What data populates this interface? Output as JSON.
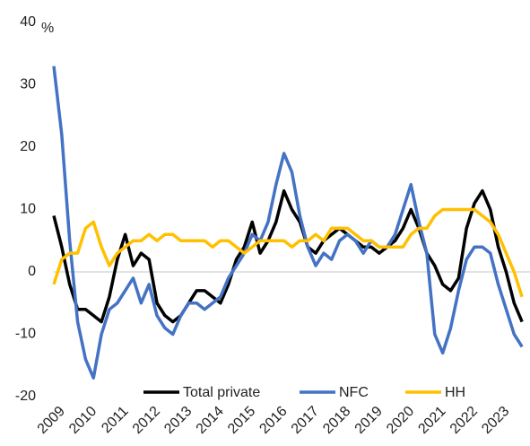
{
  "chart_data": {
    "type": "line",
    "y_unit_label": "%",
    "categories": [
      "2009",
      null,
      null,
      null,
      "2010",
      null,
      null,
      null,
      "2011",
      null,
      null,
      null,
      "2012",
      null,
      null,
      null,
      "2013",
      null,
      null,
      null,
      "2014",
      null,
      null,
      null,
      "2015",
      null,
      null,
      null,
      "2016",
      null,
      null,
      null,
      "2017",
      null,
      null,
      null,
      "2018",
      null,
      null,
      null,
      "2019",
      null,
      null,
      null,
      "2020",
      null,
      null,
      null,
      "2021",
      null,
      null,
      null,
      "2022",
      null,
      null,
      null,
      "2023",
      null,
      null,
      null
    ],
    "series": [
      {
        "name": "Total private",
        "color": "#000000",
        "values": [
          9,
          4,
          -2,
          -6,
          -6,
          -7,
          -8,
          -4,
          2,
          6,
          1,
          3,
          2,
          -5,
          -7,
          -8,
          -7,
          -5,
          -3,
          -3,
          -4,
          -5,
          -2,
          2,
          4,
          8,
          3,
          5,
          8,
          13,
          10,
          8,
          4,
          3,
          5,
          6,
          7,
          6,
          5,
          4,
          4,
          3,
          4,
          5,
          7,
          10,
          7,
          3,
          1,
          -2,
          -3,
          -1,
          7,
          11,
          13,
          10,
          4,
          0,
          -5,
          -8
        ]
      },
      {
        "name": "NFC",
        "color": "#4472c4",
        "values": [
          33,
          22,
          5,
          -8,
          -14,
          -17,
          -10,
          -6,
          -5,
          -3,
          -1,
          -5,
          -2,
          -7,
          -9,
          -10,
          -7,
          -5,
          -5,
          -6,
          -5,
          -4,
          -1,
          1,
          3,
          6,
          5,
          8,
          14,
          19,
          16,
          9,
          4,
          1,
          3,
          2,
          5,
          6,
          5,
          3,
          5,
          4,
          4,
          6,
          10,
          14,
          8,
          3,
          -10,
          -13,
          -9,
          -3,
          2,
          4,
          4,
          3,
          -2,
          -6,
          -10,
          -12
        ]
      },
      {
        "name": "HH",
        "color": "#ffc000",
        "values": [
          -2,
          2,
          3,
          3,
          7,
          8,
          4,
          1,
          3,
          4,
          5,
          5,
          6,
          5,
          6,
          6,
          5,
          5,
          5,
          5,
          4,
          5,
          5,
          4,
          3,
          4,
          5,
          5,
          5,
          5,
          4,
          5,
          5,
          6,
          5,
          7,
          7,
          7,
          6,
          5,
          5,
          4,
          4,
          4,
          4,
          6,
          7,
          7,
          9,
          10,
          10,
          10,
          10,
          10,
          9,
          8,
          6,
          3,
          0,
          -4
        ]
      }
    ],
    "ylim": [
      -20,
      40
    ],
    "yticks": [
      -20,
      -10,
      0,
      10,
      20,
      30,
      40
    ],
    "legend": "bottom",
    "grid": false
  }
}
